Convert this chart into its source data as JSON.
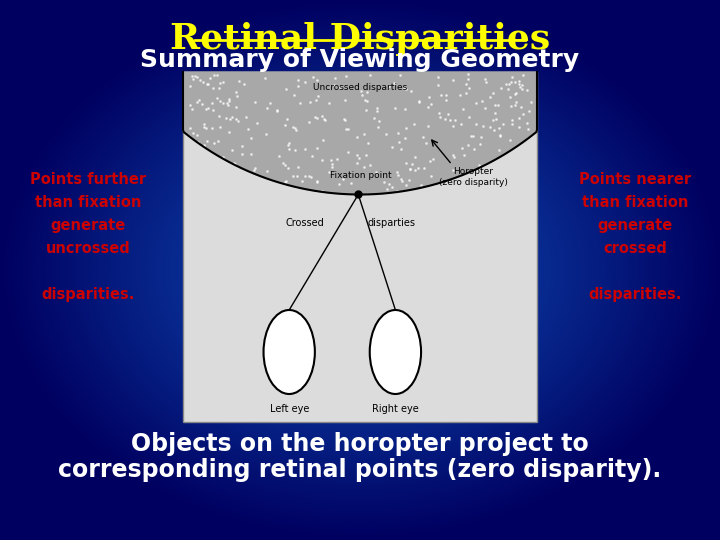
{
  "title": "Retinal Disparities",
  "subtitle": "Summary of Viewing Geometry",
  "left_lines": [
    "Points further",
    "than fixation",
    "generate",
    "uncrossed",
    "",
    "disparities."
  ],
  "right_lines": [
    "Points nearer",
    "than fixation",
    "generate",
    "crossed",
    "",
    "disparities."
  ],
  "bottom_text1": "Objects on the horopter project to",
  "bottom_text2": "corresponding retinal points (zero disparity).",
  "title_color": "#FFFF00",
  "subtitle_color": "#FFFFFF",
  "side_text_color": "#CC0000",
  "bottom_text_color": "#FFFFFF"
}
